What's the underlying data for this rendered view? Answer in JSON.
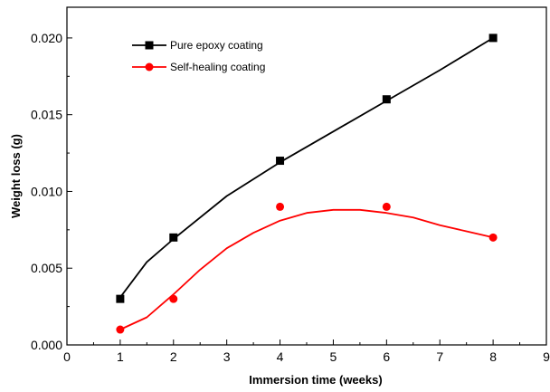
{
  "chart_data": {
    "type": "line",
    "title": "",
    "xlabel": "Immersion time (weeks)",
    "ylabel": "Weight loss (g)",
    "xlim": [
      0,
      9
    ],
    "ylim": [
      0.0,
      0.022
    ],
    "x_ticks": [
      0,
      1,
      2,
      3,
      4,
      5,
      6,
      7,
      8,
      9
    ],
    "y_ticks": [
      0.0,
      0.005,
      0.01,
      0.015,
      0.02
    ],
    "x_tick_labels": [
      "0",
      "1",
      "2",
      "3",
      "4",
      "5",
      "6",
      "7",
      "8",
      "9"
    ],
    "y_tick_labels": [
      "0.000",
      "0.005",
      "0.010",
      "0.015",
      "0.020"
    ],
    "grid": false,
    "legend_position": "top-left",
    "series": [
      {
        "name": "Pure epoxy coating",
        "color": "#000000",
        "marker": "square",
        "x": [
          1,
          2,
          4,
          6,
          8
        ],
        "y": [
          0.003,
          0.007,
          0.012,
          0.016,
          0.02
        ],
        "curve_x": [
          1,
          1.5,
          2,
          3,
          4,
          5,
          6,
          7,
          8
        ],
        "curve_y": [
          0.0031,
          0.0054,
          0.0069,
          0.0097,
          0.0119,
          0.0139,
          0.0159,
          0.0179,
          0.02
        ]
      },
      {
        "name": "Self-healing coating",
        "color": "#ff0000",
        "marker": "circle",
        "x": [
          1,
          2,
          4,
          6,
          8
        ],
        "y": [
          0.001,
          0.003,
          0.009,
          0.009,
          0.007
        ],
        "curve_x": [
          1,
          1.5,
          2,
          2.5,
          3,
          3.5,
          4,
          4.5,
          5,
          5.5,
          6,
          6.5,
          7,
          7.5,
          8
        ],
        "curve_y": [
          0.001,
          0.0018,
          0.0033,
          0.0049,
          0.0063,
          0.0073,
          0.0081,
          0.0086,
          0.0088,
          0.0088,
          0.0086,
          0.0083,
          0.0078,
          0.0074,
          0.007
        ]
      }
    ]
  }
}
